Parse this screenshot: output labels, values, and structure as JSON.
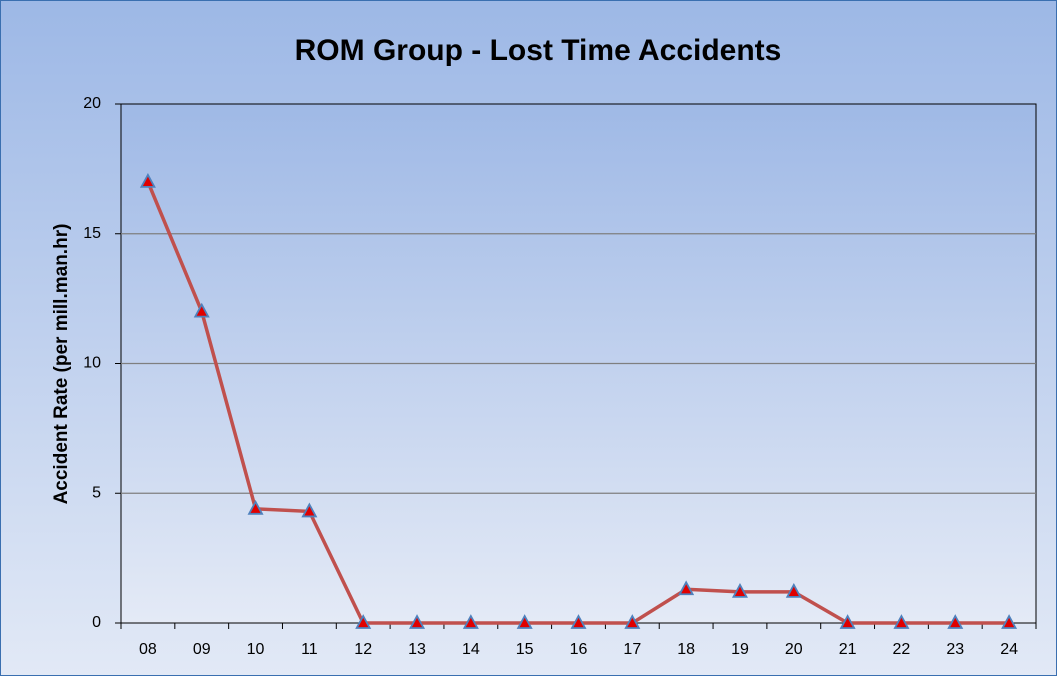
{
  "chart_data": {
    "type": "line",
    "title": "ROM Group  -  Lost Time Accidents",
    "y_label": "Accident Rate (per mill.man.hr)",
    "categories": [
      "08",
      "09",
      "10",
      "11",
      "12",
      "13",
      "14",
      "15",
      "16",
      "17",
      "18",
      "19",
      "20",
      "21",
      "22",
      "23",
      "24"
    ],
    "series": [
      {
        "color": "#c0504d",
        "marker_color": "#e00000",
        "marker_edge": "#4f81bd",
        "values": [
          17,
          12,
          4.4,
          4.3,
          0,
          0,
          0,
          0,
          0,
          0,
          1.3,
          1.2,
          1.2,
          0,
          0,
          0,
          0
        ]
      }
    ],
    "ylim": [
      0,
      20
    ],
    "yticks": [
      0,
      5,
      10,
      15,
      20
    ],
    "grid": true
  }
}
